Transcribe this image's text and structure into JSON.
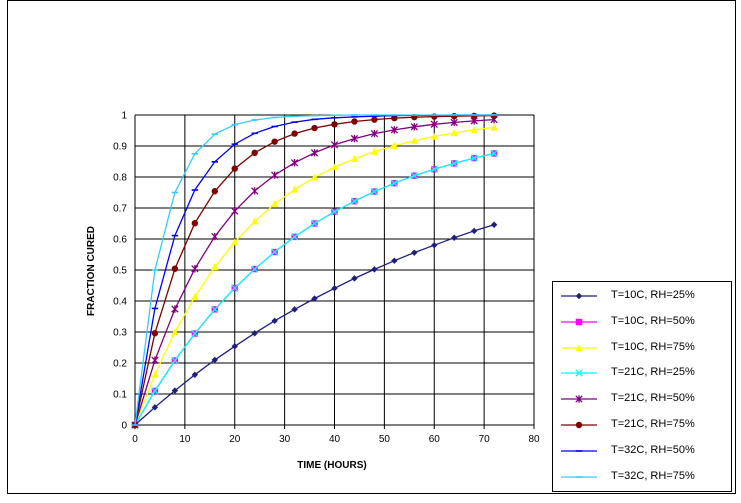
{
  "chart_data": {
    "type": "line",
    "title": "",
    "xlabel": "TIME (HOURS)",
    "ylabel": "FRACTION CURED",
    "xlim": [
      0,
      80
    ],
    "ylim": [
      0,
      1
    ],
    "x_ticks": [
      "0",
      "10",
      "20",
      "30",
      "40",
      "50",
      "60",
      "70",
      "80"
    ],
    "y_ticks": [
      "0",
      "0.1",
      "0.2",
      "0.3",
      "0.4",
      "0.5",
      "0.6",
      "0.7",
      "0.8",
      "0.9",
      "1"
    ],
    "grid": "horizontal and vertical",
    "legend_position": "bottom-right",
    "x": [
      0,
      4,
      8,
      12,
      16,
      20,
      24,
      28,
      32,
      36,
      40,
      44,
      48,
      52,
      56,
      60,
      64,
      68,
      72
    ],
    "series": [
      {
        "name": "T=10C, RH=25%",
        "color": "#1F1F80",
        "marker": "diamond",
        "values": [
          0,
          0.057,
          0.111,
          0.162,
          0.21,
          0.254,
          0.296,
          0.336,
          0.373,
          0.408,
          0.441,
          0.473,
          0.502,
          0.53,
          0.556,
          0.58,
          0.604,
          0.626,
          0.646
        ]
      },
      {
        "name": "T=10C, RH=50%",
        "color": "#FF00FF",
        "marker": "square",
        "values": [
          0,
          0.11,
          0.208,
          0.295,
          0.373,
          0.442,
          0.503,
          0.558,
          0.607,
          0.65,
          0.688,
          0.722,
          0.753,
          0.78,
          0.804,
          0.825,
          0.844,
          0.861,
          0.876
        ]
      },
      {
        "name": "T=10C, RH=75%",
        "color": "#FFFF00",
        "marker": "triangle",
        "values": [
          0,
          0.163,
          0.3,
          0.414,
          0.51,
          0.59,
          0.657,
          0.713,
          0.76,
          0.799,
          0.832,
          0.859,
          0.882,
          0.901,
          0.917,
          0.931,
          0.942,
          0.952,
          0.96
        ]
      },
      {
        "name": "T=21C, RH=25%",
        "color": "#00FFFF",
        "marker": "x",
        "values": [
          0,
          0.11,
          0.208,
          0.295,
          0.373,
          0.442,
          0.503,
          0.558,
          0.607,
          0.65,
          0.688,
          0.722,
          0.753,
          0.78,
          0.804,
          0.825,
          0.844,
          0.861,
          0.876
        ]
      },
      {
        "name": "T=21C, RH=50%",
        "color": "#800080",
        "marker": "star",
        "values": [
          0,
          0.209,
          0.374,
          0.504,
          0.608,
          0.69,
          0.755,
          0.806,
          0.846,
          0.878,
          0.904,
          0.924,
          0.94,
          0.952,
          0.962,
          0.97,
          0.976,
          0.981,
          0.985
        ]
      },
      {
        "name": "T=21C, RH=75%",
        "color": "#800000",
        "marker": "circle",
        "values": [
          0,
          0.296,
          0.504,
          0.651,
          0.754,
          0.827,
          0.878,
          0.914,
          0.94,
          0.958,
          0.97,
          0.979,
          0.985,
          0.99,
          0.993,
          0.995,
          0.996,
          0.997,
          0.998
        ]
      },
      {
        "name": "T=32C, RH=50%",
        "color": "#0000FF",
        "marker": "dash",
        "values": [
          0,
          0.376,
          0.611,
          0.758,
          0.849,
          0.906,
          0.941,
          0.963,
          0.977,
          0.986,
          0.991,
          0.994,
          0.996,
          0.998,
          0.999,
          0.999,
          1.0,
          1.0,
          1.0
        ]
      },
      {
        "name": "T=32C, RH=75%",
        "color": "#33CCFF",
        "marker": "dash",
        "values": [
          0,
          0.5,
          0.75,
          0.875,
          0.938,
          0.969,
          0.984,
          0.992,
          0.996,
          0.998,
          0.999,
          1.0,
          1.0,
          1.0,
          1.0,
          1.0,
          1.0,
          1.0,
          1.0
        ]
      }
    ]
  }
}
